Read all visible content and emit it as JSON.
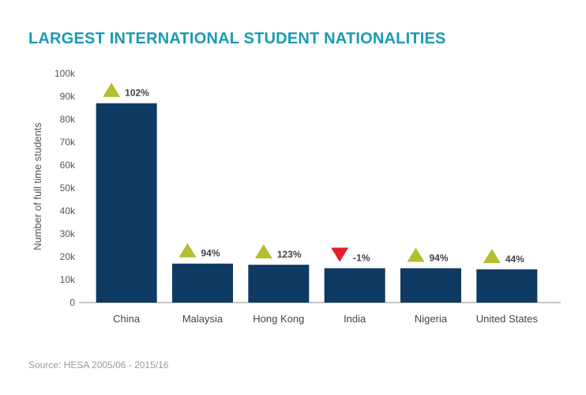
{
  "title": "LARGEST INTERNATIONAL STUDENT NATIONALITIES",
  "source": "Source: HESA 2005/06 - 2015/16",
  "colors": {
    "title": "#1a9bb3",
    "bar": "#0e3a63",
    "up": "#b5be2f",
    "down": "#e41e2e"
  },
  "chart_data": {
    "type": "bar",
    "categories": [
      "China",
      "Malaysia",
      "Hong Kong",
      "India",
      "Nigeria",
      "United States"
    ],
    "values": [
      87000,
      17000,
      16500,
      15000,
      15000,
      14500
    ],
    "change_labels": [
      "102%",
      "94%",
      "123%",
      "-1%",
      "94%",
      "44%"
    ],
    "change_direction": [
      "up",
      "up",
      "up",
      "down",
      "up",
      "up"
    ],
    "ylabel": "Number of full time students",
    "ylim": [
      0,
      100000
    ],
    "yticks": [
      "0",
      "10k",
      "20k",
      "30k",
      "40k",
      "50k",
      "60k",
      "70k",
      "80k",
      "90k",
      "100k"
    ],
    "grid": false
  }
}
